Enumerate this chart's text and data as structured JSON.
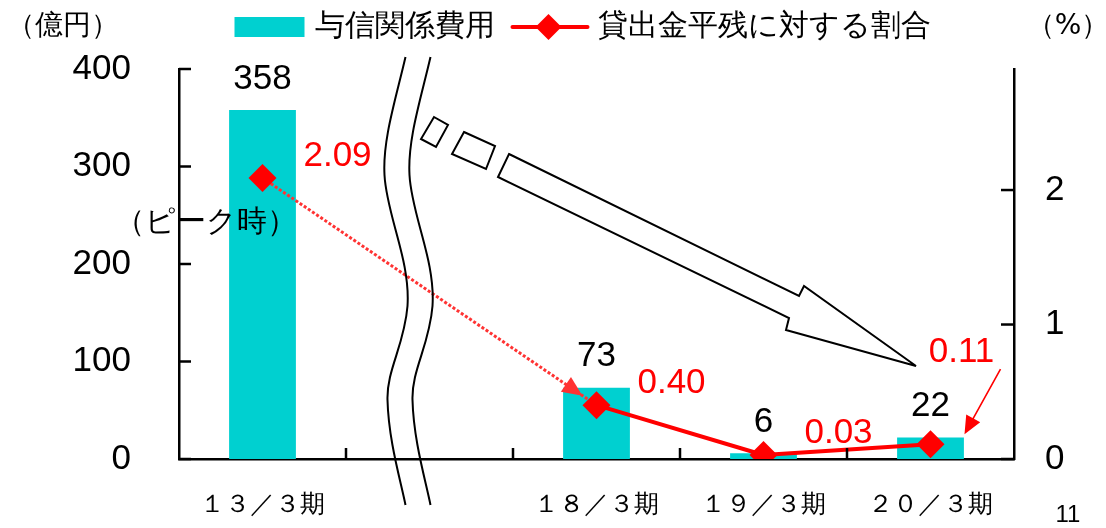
{
  "chart_data": {
    "type": "bar",
    "categories": [
      "１３／３期",
      null,
      "１８／３期",
      "１９／３期",
      "２０／３期"
    ],
    "ylabel": "（億円）",
    "y2label": "（%）",
    "ylim": [
      0,
      400
    ],
    "yticks": [
      0,
      100,
      200,
      300,
      400
    ],
    "y2lim": [
      0,
      2.9
    ],
    "y2ticks": [
      0,
      1,
      2
    ],
    "legend": "top",
    "series": [
      {
        "name": "与信関係費用",
        "color": "#00d0d0",
        "values": [
          358,
          null,
          73,
          6,
          22
        ],
        "value_labels": [
          "358",
          null,
          "73",
          "6",
          "22"
        ]
      },
      {
        "name": "貸出金平残に対する割合",
        "type": "line",
        "axis": "y2",
        "color": "#ff0000",
        "marker": "diamond",
        "line_style": "solid",
        "values": [
          2.09,
          null,
          0.4,
          0.03,
          0.11
        ],
        "value_labels": [
          "2.09",
          null,
          "0.40",
          "0.03",
          "0.11"
        ]
      },
      {
        "type": "line",
        "axis": "y2",
        "color": "#ff3333",
        "marker": "none",
        "line_style": "dotted",
        "x": [
          "１３／３期",
          "１８／３期"
        ],
        "values": [
          2.09,
          0.4
        ]
      }
    ],
    "annotations": [
      "（ピーク時）",
      "11"
    ]
  }
}
